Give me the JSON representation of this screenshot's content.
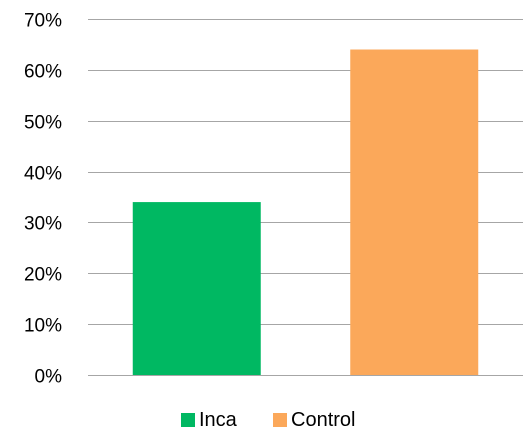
{
  "chart_data": {
    "type": "bar",
    "categories": [
      "Inca",
      "Control"
    ],
    "values": [
      34,
      64
    ],
    "colors": [
      "#00b862",
      "#fba85a"
    ],
    "ylim": [
      0,
      70
    ],
    "y_ticks": [
      0,
      10,
      20,
      30,
      40,
      50,
      60,
      70
    ],
    "y_tick_labels": [
      "0%",
      "10%",
      "20%",
      "30%",
      "40%",
      "50%",
      "60%",
      "70%"
    ],
    "value_unit": "percent",
    "grid": true,
    "legend": {
      "position": "bottom",
      "entries": [
        "Inca",
        "Control"
      ]
    },
    "title": "",
    "xlabel": "",
    "ylabel": ""
  }
}
